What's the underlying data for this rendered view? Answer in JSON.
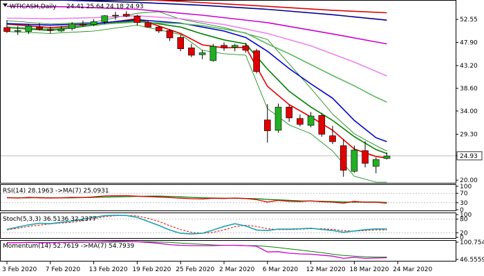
{
  "chart_data": {
    "type": "candlestick",
    "symbol_label": "WTICASH,Daily",
    "ohlc_label": "24.41 25.64 24.18 24.93",
    "current_price": "24.93",
    "price_ticks": [
      "52.55",
      "47.90",
      "43.20",
      "38.60",
      "34.00",
      "29.30",
      "24.93",
      "20.00"
    ],
    "price_tick_values": [
      52.55,
      47.9,
      43.2,
      38.6,
      34.0,
      29.3,
      24.93,
      20.0
    ],
    "price_range": [
      19.6,
      56.2
    ],
    "date_labels": [
      "3 Feb 2020",
      "7 Feb 2020",
      "13 Feb 2020",
      "19 Feb 2020",
      "25 Feb 2020",
      "2 Mar 2020",
      "6 Mar 2020",
      "12 Mar 2020",
      "18 Mar 2020",
      "24 Mar 2020"
    ],
    "date_label_index": [
      0,
      4,
      8,
      12,
      16,
      20,
      24,
      28,
      32,
      36
    ],
    "candles": [
      {
        "o": 50.9,
        "h": 52.4,
        "l": 49.8,
        "c": 50.1
      },
      {
        "o": 50.2,
        "h": 51.2,
        "l": 49.4,
        "c": 50.3
      },
      {
        "o": 50.1,
        "h": 51.6,
        "l": 49.6,
        "c": 51.2
      },
      {
        "o": 51.0,
        "h": 51.8,
        "l": 50.3,
        "c": 50.6
      },
      {
        "o": 50.5,
        "h": 51.1,
        "l": 49.7,
        "c": 50.3
      },
      {
        "o": 50.2,
        "h": 51.2,
        "l": 50.0,
        "c": 50.6
      },
      {
        "o": 50.7,
        "h": 52.0,
        "l": 50.3,
        "c": 51.6
      },
      {
        "o": 51.6,
        "h": 52.3,
        "l": 51.1,
        "c": 51.4
      },
      {
        "o": 51.5,
        "h": 52.6,
        "l": 51.2,
        "c": 52.1
      },
      {
        "o": 52.1,
        "h": 53.4,
        "l": 51.6,
        "c": 53.3
      },
      {
        "o": 53.4,
        "h": 54.1,
        "l": 52.5,
        "c": 53.3
      },
      {
        "o": 53.6,
        "h": 54.2,
        "l": 53.0,
        "c": 53.2
      },
      {
        "o": 53.2,
        "h": 53.5,
        "l": 51.3,
        "c": 51.9
      },
      {
        "o": 51.9,
        "h": 52.3,
        "l": 50.9,
        "c": 51.0
      },
      {
        "o": 51.0,
        "h": 51.3,
        "l": 49.8,
        "c": 50.2
      },
      {
        "o": 50.3,
        "h": 50.6,
        "l": 48.2,
        "c": 48.8
      },
      {
        "o": 48.9,
        "h": 49.4,
        "l": 46.1,
        "c": 46.6
      },
      {
        "o": 46.8,
        "h": 47.6,
        "l": 44.9,
        "c": 45.3
      },
      {
        "o": 45.4,
        "h": 46.4,
        "l": 44.5,
        "c": 45.8
      },
      {
        "o": 44.2,
        "h": 47.6,
        "l": 44.0,
        "c": 47.1
      },
      {
        "o": 47.3,
        "h": 47.9,
        "l": 46.2,
        "c": 46.8
      },
      {
        "o": 46.9,
        "h": 47.6,
        "l": 46.1,
        "c": 47.3
      },
      {
        "o": 47.2,
        "h": 47.8,
        "l": 45.8,
        "c": 46.3
      },
      {
        "o": 46.2,
        "h": 46.6,
        "l": 41.6,
        "c": 42.0
      },
      {
        "o": 32.2,
        "h": 35.4,
        "l": 27.6,
        "c": 30.0
      },
      {
        "o": 30.1,
        "h": 35.5,
        "l": 29.6,
        "c": 34.8
      },
      {
        "o": 34.8,
        "h": 35.3,
        "l": 31.8,
        "c": 32.6
      },
      {
        "o": 32.5,
        "h": 33.3,
        "l": 30.9,
        "c": 31.3
      },
      {
        "o": 31.1,
        "h": 33.8,
        "l": 30.7,
        "c": 33.0
      },
      {
        "o": 33.1,
        "h": 33.6,
        "l": 28.8,
        "c": 29.3
      },
      {
        "o": 29.0,
        "h": 31.0,
        "l": 27.3,
        "c": 27.8
      },
      {
        "o": 27.0,
        "h": 28.3,
        "l": 20.7,
        "c": 22.0
      },
      {
        "o": 21.8,
        "h": 27.0,
        "l": 21.5,
        "c": 26.1
      },
      {
        "o": 26.0,
        "h": 27.9,
        "l": 22.6,
        "c": 23.4
      },
      {
        "o": 22.8,
        "h": 24.6,
        "l": 21.4,
        "c": 24.2
      },
      {
        "o": 24.4,
        "h": 25.6,
        "l": 24.2,
        "c": 24.9
      }
    ],
    "moving_averages": [
      {
        "color": "#e00000",
        "points": [
          [
            0,
            51.6
          ],
          [
            4,
            50.9
          ],
          [
            8,
            51.5
          ],
          [
            12,
            52.7
          ],
          [
            16,
            49.7
          ],
          [
            18,
            47.4
          ],
          [
            20,
            46.8
          ],
          [
            22,
            46.9
          ],
          [
            24,
            39.0
          ],
          [
            26,
            35.3
          ],
          [
            28,
            32.8
          ],
          [
            30,
            30.1
          ],
          [
            32,
            26.3
          ],
          [
            34,
            24.8
          ],
          [
            35,
            24.5
          ]
        ]
      },
      {
        "color": "#008000",
        "points": [
          [
            0,
            50.9
          ],
          [
            4,
            50.3
          ],
          [
            8,
            51.4
          ],
          [
            12,
            52.3
          ],
          [
            16,
            51.0
          ],
          [
            18,
            49.6
          ],
          [
            20,
            48.4
          ],
          [
            22,
            47.6
          ],
          [
            24,
            42.5
          ],
          [
            26,
            38.0
          ],
          [
            28,
            34.8
          ],
          [
            30,
            32.1
          ],
          [
            32,
            28.8
          ],
          [
            34,
            26.2
          ],
          [
            35,
            25.4
          ]
        ]
      },
      {
        "color": "#0000cc",
        "points": [
          [
            0,
            51.7
          ],
          [
            4,
            51.4
          ],
          [
            8,
            51.7
          ],
          [
            12,
            52.5
          ],
          [
            16,
            51.8
          ],
          [
            18,
            51.0
          ],
          [
            20,
            50.2
          ],
          [
            22,
            48.9
          ],
          [
            24,
            46.1
          ],
          [
            26,
            42.6
          ],
          [
            28,
            39.5
          ],
          [
            30,
            36.6
          ],
          [
            32,
            32.1
          ],
          [
            34,
            28.6
          ],
          [
            35,
            27.8
          ]
        ]
      },
      {
        "color": "#5cb85c",
        "points": [
          [
            0,
            51.0
          ],
          [
            4,
            50.6
          ],
          [
            8,
            51.5
          ],
          [
            12,
            52.0
          ],
          [
            16,
            51.7
          ],
          [
            18,
            51.3
          ],
          [
            20,
            50.6
          ],
          [
            22,
            49.8
          ],
          [
            24,
            47.6
          ],
          [
            26,
            45.6
          ],
          [
            28,
            43.4
          ],
          [
            30,
            41.2
          ],
          [
            32,
            39.1
          ],
          [
            34,
            36.8
          ],
          [
            35,
            35.8
          ]
        ]
      },
      {
        "color": "#ee82ee",
        "points": [
          [
            0,
            52.8
          ],
          [
            4,
            52.7
          ],
          [
            8,
            52.9
          ],
          [
            12,
            53.3
          ],
          [
            16,
            52.7
          ],
          [
            20,
            51.5
          ],
          [
            24,
            49.7
          ],
          [
            28,
            47.2
          ],
          [
            32,
            43.9
          ],
          [
            35,
            41.1
          ]
        ]
      },
      {
        "color": "#cc00cc",
        "points": [
          [
            0,
            55.2
          ],
          [
            6,
            55.1
          ],
          [
            12,
            54.6
          ],
          [
            18,
            53.4
          ],
          [
            24,
            51.9
          ],
          [
            30,
            49.6
          ],
          [
            35,
            47.6
          ]
        ]
      },
      {
        "color": "#00008b",
        "points": [
          [
            0,
            56.8
          ],
          [
            6,
            56.4
          ],
          [
            12,
            56.0
          ],
          [
            18,
            55.4
          ],
          [
            24,
            54.6
          ],
          [
            30,
            53.5
          ],
          [
            35,
            52.4
          ]
        ]
      },
      {
        "color": "#e00000",
        "points": [
          [
            0,
            57.3
          ],
          [
            8,
            57.0
          ],
          [
            16,
            56.2
          ],
          [
            24,
            55.2
          ],
          [
            30,
            54.4
          ],
          [
            35,
            53.9
          ]
        ]
      }
    ],
    "bollinger_band": {
      "color": "#008000",
      "upper": [
        [
          0,
          52.3
        ],
        [
          4,
          51.6
        ],
        [
          8,
          52.0
        ],
        [
          12,
          53.8
        ],
        [
          14,
          54.1
        ],
        [
          16,
          52.6
        ],
        [
          20,
          50.9
        ],
        [
          24,
          48.5
        ],
        [
          28,
          38.6
        ],
        [
          30,
          33.4
        ],
        [
          32,
          29.4
        ],
        [
          34,
          27.0
        ],
        [
          35,
          25.9
        ]
      ],
      "lower": [
        [
          0,
          50.1
        ],
        [
          4,
          49.7
        ],
        [
          8,
          50.2
        ],
        [
          12,
          51.4
        ],
        [
          16,
          49.5
        ],
        [
          18,
          46.3
        ],
        [
          20,
          45.6
        ],
        [
          22,
          45.3
        ],
        [
          24,
          34.5
        ],
        [
          26,
          31.2
        ],
        [
          28,
          29.4
        ],
        [
          30,
          25.9
        ],
        [
          32,
          20.8
        ],
        [
          34,
          19.6
        ],
        [
          35,
          19.6
        ]
      ]
    },
    "rsi": {
      "label": "RSI(14) 28.1963 ->MA(7) 25.0931",
      "ticks": [
        "100",
        "70",
        "30",
        "0"
      ],
      "tick_values": [
        100,
        70,
        30,
        0
      ],
      "rsi_color": "#e00000",
      "ma_color": "#008000",
      "rsi": [
        52,
        50,
        53,
        51,
        50,
        51,
        53,
        52,
        55,
        59,
        60,
        60,
        58,
        56,
        54,
        52,
        49,
        47,
        46,
        49,
        48,
        50,
        48,
        43,
        33,
        40,
        36,
        35,
        38,
        34,
        33,
        28,
        36,
        32,
        32,
        28
      ],
      "ma": [
        51,
        51,
        51,
        52,
        51,
        51,
        51,
        52,
        53,
        54,
        55,
        56,
        57,
        58,
        58,
        57,
        55,
        53,
        51,
        50,
        49,
        49,
        48,
        47,
        44,
        42,
        40,
        38,
        37,
        36,
        35,
        33,
        33,
        33,
        33,
        31
      ]
    },
    "stoch": {
      "label": "Stoch(5,3,3) 36.5136 32.2377",
      "ticks": [
        "100",
        "80",
        "20",
        "0"
      ],
      "tick_values": [
        100,
        80,
        20,
        0
      ],
      "k_color": "#1aa3b3",
      "d_color": "#e00000",
      "k": [
        35,
        45,
        55,
        62,
        60,
        66,
        72,
        80,
        88,
        95,
        97,
        96,
        88,
        70,
        52,
        32,
        18,
        15,
        18,
        32,
        48,
        60,
        50,
        32,
        30,
        36,
        36,
        38,
        40,
        35,
        30,
        22,
        28,
        34,
        37,
        37
      ],
      "d": [
        33,
        40,
        48,
        54,
        59,
        63,
        66,
        73,
        82,
        91,
        95,
        96,
        94,
        84,
        70,
        51,
        34,
        22,
        18,
        22,
        33,
        47,
        53,
        48,
        38,
        34,
        34,
        36,
        38,
        38,
        35,
        29,
        27,
        30,
        33,
        33
      ]
    },
    "momentum": {
      "label": "Momentum(14) 52.7619 ->MA(7) 54.7939",
      "ticks": [
        "100.754",
        "46.5559"
      ],
      "tick_values": [
        100.754,
        46.5559
      ],
      "mom_color": "#cc00cc",
      "ma_color": "#008000",
      "mom": [
        99,
        99,
        100,
        99,
        99,
        100,
        101,
        101,
        101,
        102,
        103,
        103,
        102,
        100,
        97,
        93,
        91,
        90,
        90,
        90,
        91,
        91,
        90,
        88,
        70,
        71,
        66,
        64,
        63,
        60,
        57,
        50,
        53,
        50,
        51,
        52
      ],
      "ma": [
        99,
        99,
        100,
        100,
        100,
        100,
        100,
        100,
        101,
        101,
        101,
        102,
        102,
        102,
        101,
        100,
        98,
        96,
        94,
        92,
        91,
        91,
        90,
        90,
        87,
        84,
        80,
        76,
        72,
        68,
        63,
        59,
        57,
        55,
        54,
        54
      ]
    }
  }
}
